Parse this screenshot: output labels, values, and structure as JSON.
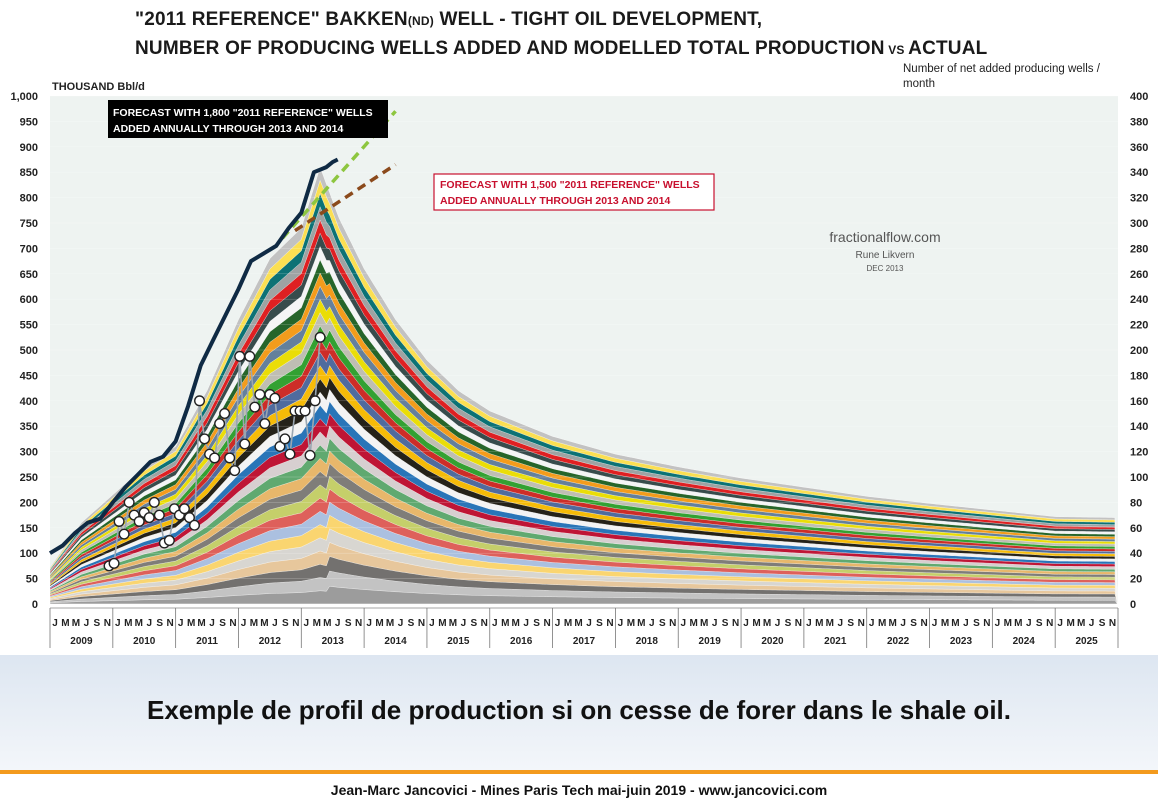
{
  "header": {
    "title_line1_a": "\"2011 REFERENCE\" BAKKEN",
    "title_line1_b": "(ND)",
    "title_line1_c": " WELL - TIGHT OIL DEVELOPMENT,",
    "title_line2_a": "NUMBER OF PRODUCING WELLS ADDED AND MODELLED TOTAL PRODUCTION",
    "title_line2_b": " VS ",
    "title_line2_c": "ACTUAL"
  },
  "chart_data": {
    "type": "area",
    "left_axis": {
      "label": "THOUSAND Bbl/d",
      "min": 0,
      "max": 1000,
      "step": 50,
      "tick_labels": [
        "0",
        "50",
        "100",
        "150",
        "200",
        "250",
        "300",
        "350",
        "400",
        "450",
        "500",
        "550",
        "600",
        "650",
        "700",
        "750",
        "800",
        "850",
        "900",
        "950",
        "1,000"
      ]
    },
    "right_axis": {
      "label_line1": "Number of  net added producing wells /",
      "label_line2": "month",
      "min": 0,
      "max": 400,
      "step": 20,
      "tick_labels": [
        "0",
        "20",
        "40",
        "60",
        "80",
        "100",
        "120",
        "140",
        "160",
        "180",
        "200",
        "220",
        "240",
        "260",
        "280",
        "300",
        "320",
        "340",
        "360",
        "380",
        "400"
      ]
    },
    "x_axis": {
      "years": [
        "2009",
        "2010",
        "2011",
        "2012",
        "2013",
        "2014",
        "2015",
        "2016",
        "2017",
        "2018",
        "2019",
        "2020",
        "2021",
        "2022",
        "2023",
        "2024",
        "2025"
      ],
      "month_ticks": [
        "J",
        "M",
        "M",
        "J",
        "S",
        "N"
      ]
    },
    "stacked_total_estimate": {
      "x": [
        2009.0,
        2009.5,
        2010.0,
        2010.5,
        2011.0,
        2011.5,
        2012.0,
        2012.5,
        2013.0,
        2013.3,
        2013.6,
        2014.0,
        2014.5,
        2015.0,
        2015.5,
        2016.0,
        2017.0,
        2018.0,
        2019.0,
        2020.0,
        2021.0,
        2022.0,
        2023.0,
        2024.0,
        2025.0,
        2025.99
      ],
      "y": [
        72,
        160,
        215,
        270,
        310,
        420,
        560,
        680,
        740,
        860,
        760,
        660,
        560,
        480,
        420,
        380,
        330,
        295,
        270,
        248,
        230,
        212,
        198,
        185,
        172,
        170
      ]
    },
    "actual_production": {
      "x": [
        2009.0,
        2009.2,
        2009.4,
        2009.6,
        2009.8,
        2010.0,
        2010.2,
        2010.4,
        2010.6,
        2010.8,
        2011.0,
        2011.2,
        2011.4,
        2011.6,
        2011.8,
        2012.0,
        2012.2,
        2012.4,
        2012.6,
        2012.8,
        2013.0,
        2013.2,
        2013.4,
        2013.5,
        2013.58
      ],
      "y": [
        100,
        115,
        140,
        160,
        168,
        200,
        230,
        255,
        280,
        290,
        320,
        390,
        470,
        520,
        570,
        620,
        675,
        690,
        705,
        740,
        770,
        850,
        860,
        870,
        875
      ]
    },
    "wells_added": {
      "x": [
        2009.94,
        2010.02,
        2010.1,
        2010.18,
        2010.26,
        2010.34,
        2010.42,
        2010.5,
        2010.58,
        2010.66,
        2010.74,
        2010.82,
        2010.9,
        2010.98,
        2011.06,
        2011.14,
        2011.22,
        2011.3,
        2011.38,
        2011.46,
        2011.54,
        2011.62,
        2011.7,
        2011.78,
        2011.86,
        2011.94,
        2012.02,
        2012.1,
        2012.18,
        2012.26,
        2012.34,
        2012.42,
        2012.5,
        2012.58,
        2012.66,
        2012.74,
        2012.82,
        2012.9,
        2012.98,
        2013.06,
        2013.14,
        2013.22,
        2013.3
      ],
      "y": [
        30,
        32,
        65,
        55,
        80,
        70,
        65,
        72,
        68,
        80,
        70,
        48,
        50,
        75,
        70,
        75,
        68,
        62,
        160,
        130,
        118,
        115,
        142,
        150,
        115,
        105,
        195,
        126,
        195,
        155,
        165,
        142,
        165,
        162,
        124,
        130,
        118,
        152,
        152,
        152,
        117,
        160,
        210
      ]
    },
    "forecasts": [
      {
        "label_line1": "FORECAST WITH 1,800 \"2011 REFERENCE\" WELLS",
        "label_line2": "ADDED ANNUALLY THROUGH 2013 AND 2014",
        "color": "#8dc63f",
        "x": [
          2012.7,
          2014.5
        ],
        "y": [
          720,
          970
        ]
      },
      {
        "label_line1": "FORECAST WITH 1,500 \"2011 REFERENCE\" WELLS",
        "label_line2": "ADDED ANNUALLY THROUGH 2013 AND 2014",
        "color": "#8b4a1c",
        "x": [
          2012.9,
          2014.5
        ],
        "y": [
          735,
          865
        ]
      }
    ],
    "band_colors": [
      "#9a9a9a",
      "#c8c8c8",
      "#6d6d6d",
      "#e8c79a",
      "#d7d7d7",
      "#ffd76b",
      "#a9c6e8",
      "#e05b5b",
      "#c9d46a",
      "#7a7a7a",
      "#f0b86b",
      "#5aa86b",
      "#d9d9d9",
      "#c8102e",
      "#1f6fb5",
      "#ffffff",
      "#1a1a1a",
      "#ffc000",
      "#4a6fa5",
      "#d62728",
      "#2ca02c",
      "#bdbdbd",
      "#f2e300",
      "#5d7fa3",
      "#ff9f1c",
      "#1b5e20",
      "#ffffff",
      "#2f4f4f",
      "#e31a1c",
      "#a6a6a6",
      "#006d77",
      "#ffe14d",
      "#c0c0c0"
    ]
  },
  "watermark": {
    "site": "fractionalflow.com",
    "author": "Rune Likvern",
    "date": "DEC 2013"
  },
  "caption": "Exemple de profil de production si on cesse de forer dans le shale oil.",
  "footer": "Jean-Marc Jancovici - Mines Paris Tech mai-juin 2019 - www.jancovici.com"
}
